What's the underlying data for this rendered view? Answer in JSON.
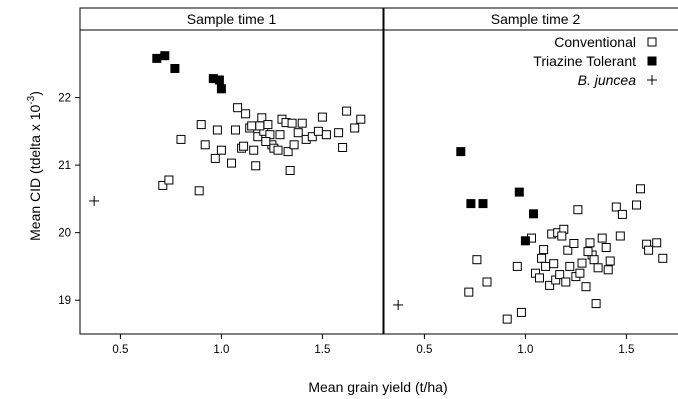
{
  "chart_data": {
    "type": "scatter",
    "xlabel": "Mean grain yield (t/ha)",
    "ylabel": "Mean CID (tdelta x 10",
    "ylabel_sup": "-3",
    "ylabel_close": ")",
    "xlim": [
      0.3,
      1.8
    ],
    "ylim": [
      18.5,
      23.0
    ],
    "x_ticks": [
      0.5,
      1.0,
      1.5
    ],
    "x_tick_labels": [
      "0.5",
      "1.0",
      "1.5"
    ],
    "y_ticks": [
      19,
      20,
      21,
      22
    ],
    "y_tick_labels": [
      "19",
      "20",
      "21",
      "22"
    ],
    "grid": false,
    "legend": {
      "placement": "top-right",
      "panel": 1,
      "entries": [
        {
          "series": 0,
          "label": "Conventional",
          "italic": false
        },
        {
          "series": 1,
          "label": "Triazine Tolerant",
          "italic": false
        },
        {
          "series": 2,
          "label": "B. juncea",
          "italic": true
        }
      ]
    },
    "series_styles": [
      {
        "marker": "open-square",
        "color": "#000000"
      },
      {
        "marker": "filled-square",
        "color": "#000000"
      },
      {
        "marker": "plus",
        "color": "#000000"
      }
    ],
    "panels": [
      {
        "title": "Sample time 1",
        "series": [
          {
            "name": "Conventional",
            "points": [
              [
                0.71,
                20.7
              ],
              [
                0.74,
                20.78
              ],
              [
                0.8,
                21.38
              ],
              [
                0.89,
                20.62
              ],
              [
                0.9,
                21.6
              ],
              [
                0.92,
                21.3
              ],
              [
                0.97,
                21.1
              ],
              [
                0.98,
                21.52
              ],
              [
                1.05,
                21.03
              ],
              [
                1.07,
                21.52
              ],
              [
                1.08,
                21.85
              ],
              [
                1.1,
                21.25
              ],
              [
                1.12,
                21.76
              ],
              [
                1.14,
                21.55
              ],
              [
                1.16,
                21.22
              ],
              [
                1.17,
                20.99
              ],
              [
                1.18,
                21.42
              ],
              [
                1.2,
                21.7
              ],
              [
                1.21,
                21.5
              ],
              [
                1.23,
                21.6
              ],
              [
                1.24,
                21.45
              ],
              [
                1.25,
                21.3
              ],
              [
                1.26,
                21.25
              ],
              [
                1.28,
                21.22
              ],
              [
                1.3,
                21.68
              ],
              [
                1.32,
                21.63
              ],
              [
                1.33,
                21.2
              ],
              [
                1.34,
                20.92
              ],
              [
                1.35,
                21.62
              ],
              [
                1.36,
                21.3
              ],
              [
                1.38,
                21.48
              ],
              [
                1.4,
                21.62
              ],
              [
                1.42,
                21.38
              ],
              [
                1.45,
                21.42
              ],
              [
                1.48,
                21.5
              ],
              [
                1.5,
                21.71
              ],
              [
                1.52,
                21.45
              ],
              [
                1.58,
                21.48
              ],
              [
                1.6,
                21.26
              ],
              [
                1.62,
                21.8
              ],
              [
                1.66,
                21.55
              ],
              [
                1.69,
                21.68
              ],
              [
                1.15,
                21.58
              ],
              [
                1.22,
                21.35
              ],
              [
                1.0,
                21.22
              ],
              [
                1.29,
                21.45
              ],
              [
                1.11,
                21.28
              ],
              [
                1.19,
                21.58
              ]
            ]
          },
          {
            "name": "Triazine Tolerant",
            "points": [
              [
                0.68,
                22.58
              ],
              [
                0.72,
                22.62
              ],
              [
                0.77,
                22.43
              ],
              [
                0.96,
                22.28
              ],
              [
                0.99,
                22.26
              ],
              [
                1.0,
                22.13
              ]
            ]
          },
          {
            "name": "B. juncea",
            "points": [
              [
                0.37,
                20.47
              ]
            ]
          }
        ]
      },
      {
        "title": "Sample time 2",
        "series": [
          {
            "name": "Conventional",
            "points": [
              [
                0.72,
                19.12
              ],
              [
                0.76,
                19.6
              ],
              [
                0.81,
                19.27
              ],
              [
                0.91,
                18.72
              ],
              [
                0.96,
                19.5
              ],
              [
                0.98,
                18.82
              ],
              [
                1.03,
                19.92
              ],
              [
                1.05,
                19.4
              ],
              [
                1.07,
                19.33
              ],
              [
                1.08,
                19.62
              ],
              [
                1.1,
                19.5
              ],
              [
                1.12,
                19.22
              ],
              [
                1.13,
                19.98
              ],
              [
                1.14,
                19.54
              ],
              [
                1.15,
                19.3
              ],
              [
                1.16,
                20.0
              ],
              [
                1.17,
                19.38
              ],
              [
                1.19,
                20.05
              ],
              [
                1.2,
                19.27
              ],
              [
                1.21,
                19.74
              ],
              [
                1.22,
                19.5
              ],
              [
                1.24,
                19.84
              ],
              [
                1.25,
                19.35
              ],
              [
                1.26,
                20.34
              ],
              [
                1.28,
                19.55
              ],
              [
                1.3,
                19.2
              ],
              [
                1.32,
                19.85
              ],
              [
                1.33,
                19.67
              ],
              [
                1.34,
                19.6
              ],
              [
                1.35,
                18.95
              ],
              [
                1.36,
                19.48
              ],
              [
                1.38,
                19.92
              ],
              [
                1.4,
                19.78
              ],
              [
                1.42,
                19.58
              ],
              [
                1.45,
                20.38
              ],
              [
                1.47,
                19.95
              ],
              [
                1.48,
                20.27
              ],
              [
                1.55,
                20.41
              ],
              [
                1.57,
                20.65
              ],
              [
                1.6,
                19.83
              ],
              [
                1.61,
                19.74
              ],
              [
                1.65,
                19.85
              ],
              [
                1.68,
                19.62
              ],
              [
                1.09,
                19.75
              ],
              [
                1.18,
                19.95
              ],
              [
                1.27,
                19.4
              ],
              [
                1.41,
                19.45
              ],
              [
                1.31,
                19.72
              ]
            ]
          },
          {
            "name": "Triazine Tolerant",
            "points": [
              [
                0.68,
                21.2
              ],
              [
                0.73,
                20.43
              ],
              [
                0.79,
                20.43
              ],
              [
                0.97,
                20.6
              ],
              [
                1.0,
                19.88
              ],
              [
                1.04,
                20.28
              ]
            ]
          },
          {
            "name": "B. juncea",
            "points": [
              [
                0.37,
                18.93
              ]
            ]
          }
        ]
      }
    ]
  }
}
